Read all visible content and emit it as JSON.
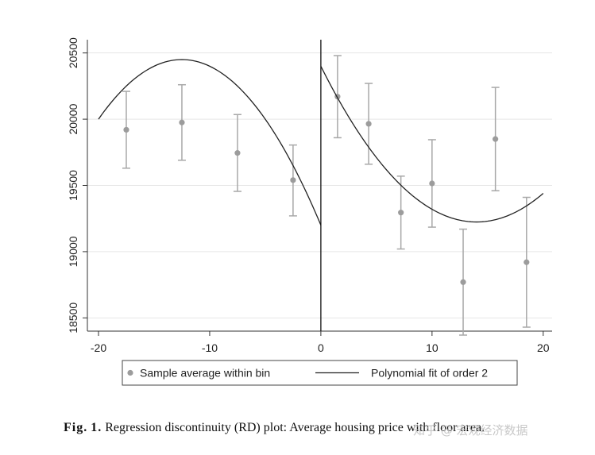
{
  "chart_data": {
    "type": "scatter",
    "title": "",
    "xlabel": "",
    "ylabel": "",
    "xlim": [
      -21,
      20.8
    ],
    "ylim": [
      18400,
      20600
    ],
    "x_ticks": [
      -20,
      -10,
      0,
      10,
      20
    ],
    "x_tick_labels": [
      "-20",
      "-10",
      "0",
      "10",
      "20"
    ],
    "y_ticks": [
      18500,
      19000,
      19500,
      20000,
      20500
    ],
    "y_tick_labels": [
      "18500",
      "19000",
      "19500",
      "20000",
      "20500"
    ],
    "cutoff": 0,
    "bins": [
      {
        "x": -17.5,
        "y": 19920,
        "lo": 19630,
        "hi": 20210
      },
      {
        "x": -12.5,
        "y": 19975,
        "lo": 19690,
        "hi": 20260
      },
      {
        "x": -7.5,
        "y": 19745,
        "lo": 19455,
        "hi": 20035
      },
      {
        "x": -2.5,
        "y": 19540,
        "lo": 19270,
        "hi": 19805
      },
      {
        "x": 1.5,
        "y": 20170,
        "lo": 19860,
        "hi": 20480
      },
      {
        "x": 4.3,
        "y": 19965,
        "lo": 19660,
        "hi": 20270
      },
      {
        "x": 7.2,
        "y": 19295,
        "lo": 19020,
        "hi": 19570
      },
      {
        "x": 10.0,
        "y": 19515,
        "lo": 19185,
        "hi": 19845
      },
      {
        "x": 12.8,
        "y": 18770,
        "lo": 18370,
        "hi": 19170
      },
      {
        "x": 15.7,
        "y": 19850,
        "lo": 19460,
        "hi": 20240
      },
      {
        "x": 18.5,
        "y": 18920,
        "lo": 18430,
        "hi": 19410
      }
    ],
    "fit_left": {
      "a": 19200,
      "b": -200,
      "c": -8,
      "x_from": -20,
      "x_to": 0
    },
    "fit_right": {
      "a": 20400,
      "b": -168,
      "c": 6,
      "x_from": 0,
      "x_to": 20
    },
    "legend": [
      {
        "label": "Sample average within bin",
        "marker": "dot"
      },
      {
        "label": "Polynomial fit of order 2",
        "marker": "line"
      }
    ],
    "legend_position": "bottom",
    "colors": {
      "points": "#9c9c9c",
      "errorbars": "#a8a8a8",
      "fit": "#222222",
      "cutoff_line": "#111111",
      "grid": "#e6e6e6",
      "axis": "#333333"
    }
  },
  "caption": {
    "label": "Fig.",
    "number": "1.",
    "text": "Regression discontinuity (RD) plot: Average housing price with floor area."
  },
  "watermark": {
    "text": "知乎 @ 宏观经济数据"
  }
}
